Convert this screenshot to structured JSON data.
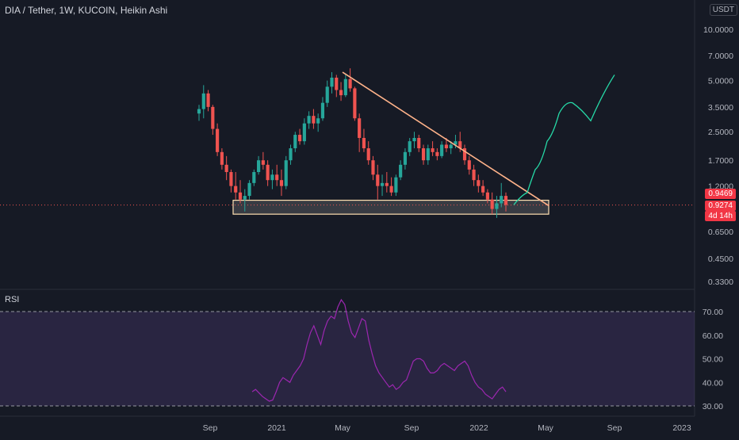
{
  "header": {
    "pair_title": "DIA / Tether, 1W, KUCOIN, Heikin Ashi",
    "currency": "USDT"
  },
  "price_tags": {
    "ref_price": "0.9469",
    "current_price": "0.9274",
    "countdown": "4d 14h",
    "ref_color": "#f23645",
    "current_color": "#f23645"
  },
  "colors": {
    "background": "#161a25",
    "up": "#26a69a",
    "down": "#ef5350",
    "trendline": "#ffb38a",
    "projection": "#26d9a7",
    "rsi_line": "#9c27b0",
    "rsi_band": "#7e57c2",
    "axis_text": "#b2b5be"
  },
  "chart_data": [
    {
      "type": "candlestick",
      "title": "DIA / Tether, 1W, KUCOIN, Heikin Ashi",
      "y_scale": "log",
      "y_ticks": [
        "10.0000",
        "7.0000",
        "5.0000",
        "3.5000",
        "2.5000",
        "1.7000",
        "1.2000",
        "0.6500",
        "0.4500",
        "0.3300"
      ],
      "x_ticks": [
        "Sep",
        "2021",
        "May",
        "Sep",
        "2022",
        "May",
        "Sep",
        "2023"
      ],
      "ohlc": [
        [
          3.2,
          3.6,
          2.9,
          3.4
        ],
        [
          3.4,
          4.7,
          3.0,
          4.2
        ],
        [
          4.2,
          4.4,
          3.3,
          3.5
        ],
        [
          3.5,
          3.6,
          2.4,
          2.6
        ],
        [
          2.6,
          2.8,
          1.8,
          1.9
        ],
        [
          1.9,
          2.0,
          1.5,
          1.6
        ],
        [
          1.6,
          1.8,
          1.3,
          1.45
        ],
        [
          1.45,
          1.5,
          1.1,
          1.2
        ],
        [
          1.2,
          1.45,
          1.0,
          1.1
        ],
        [
          1.1,
          1.3,
          0.95,
          1.0
        ],
        [
          1.0,
          1.15,
          0.85,
          1.05
        ],
        [
          1.05,
          1.3,
          1.0,
          1.25
        ],
        [
          1.25,
          1.5,
          1.2,
          1.45
        ],
        [
          1.45,
          1.8,
          1.4,
          1.7
        ],
        [
          1.7,
          1.9,
          1.5,
          1.6
        ],
        [
          1.6,
          1.7,
          1.2,
          1.3
        ],
        [
          1.3,
          1.5,
          1.15,
          1.4
        ],
        [
          1.4,
          1.6,
          1.2,
          1.3
        ],
        [
          1.3,
          1.5,
          1.05,
          1.2
        ],
        [
          1.2,
          1.8,
          1.15,
          1.7
        ],
        [
          1.7,
          2.1,
          1.6,
          2.0
        ],
        [
          2.0,
          2.5,
          1.9,
          2.4
        ],
        [
          2.4,
          2.6,
          2.1,
          2.2
        ],
        [
          2.2,
          3.0,
          2.1,
          2.8
        ],
        [
          2.8,
          3.3,
          2.6,
          3.1
        ],
        [
          3.1,
          3.4,
          2.6,
          2.8
        ],
        [
          2.8,
          3.2,
          2.5,
          3.0
        ],
        [
          3.0,
          4.0,
          2.9,
          3.7
        ],
        [
          3.7,
          5.0,
          3.5,
          4.6
        ],
        [
          4.6,
          5.6,
          4.2,
          5.2
        ],
        [
          5.2,
          5.4,
          4.0,
          4.4
        ],
        [
          4.4,
          4.9,
          3.8,
          4.1
        ],
        [
          4.1,
          5.5,
          4.0,
          5.1
        ],
        [
          5.1,
          5.9,
          4.3,
          4.5
        ],
        [
          4.5,
          4.6,
          2.9,
          3.0
        ],
        [
          3.0,
          3.2,
          1.9,
          2.3
        ],
        [
          2.3,
          2.6,
          1.9,
          2.0
        ],
        [
          2.0,
          2.2,
          1.6,
          1.7
        ],
        [
          1.7,
          1.8,
          1.3,
          1.4
        ],
        [
          1.4,
          1.6,
          1.0,
          1.2
        ],
        [
          1.2,
          1.4,
          1.05,
          1.25
        ],
        [
          1.25,
          1.45,
          1.1,
          1.2
        ],
        [
          1.2,
          1.35,
          1.05,
          1.1
        ],
        [
          1.1,
          1.4,
          1.05,
          1.35
        ],
        [
          1.35,
          1.7,
          1.3,
          1.6
        ],
        [
          1.6,
          2.0,
          1.5,
          1.9
        ],
        [
          1.9,
          2.3,
          1.8,
          2.2
        ],
        [
          2.2,
          2.5,
          2.0,
          2.3
        ],
        [
          2.3,
          2.4,
          1.9,
          2.0
        ],
        [
          2.0,
          2.1,
          1.6,
          1.7
        ],
        [
          1.7,
          2.1,
          1.6,
          2.0
        ],
        [
          2.0,
          2.2,
          1.8,
          1.9
        ],
        [
          1.9,
          2.0,
          1.7,
          1.8
        ],
        [
          1.8,
          2.2,
          1.75,
          2.1
        ],
        [
          2.1,
          2.3,
          1.9,
          2.0
        ],
        [
          2.0,
          2.2,
          1.85,
          2.1
        ],
        [
          2.1,
          2.4,
          2.0,
          2.2
        ],
        [
          2.2,
          2.5,
          1.9,
          2.0
        ],
        [
          2.0,
          2.1,
          1.6,
          1.7
        ],
        [
          1.7,
          1.8,
          1.4,
          1.5
        ],
        [
          1.5,
          1.6,
          1.2,
          1.3
        ],
        [
          1.3,
          1.4,
          1.1,
          1.2
        ],
        [
          1.2,
          1.3,
          1.05,
          1.1
        ],
        [
          1.1,
          1.15,
          0.95,
          1.0
        ],
        [
          1.0,
          1.1,
          0.82,
          0.88
        ],
        [
          0.88,
          1.05,
          0.78,
          0.95
        ],
        [
          0.95,
          1.25,
          0.9,
          1.05
        ],
        [
          1.05,
          1.1,
          0.85,
          0.93
        ]
      ],
      "trendline": {
        "from": [
          1.9,
          1.32
        ],
        "to": [
          2.0,
          0.92
        ]
      },
      "support_zone": {
        "price_low": 0.82,
        "price_high": 0.99
      },
      "projection": [
        [
          0.93,
          0.97
        ],
        [
          1.05,
          1.1
        ],
        [
          1.3,
          1.5
        ],
        [
          1.6,
          2.2
        ],
        [
          2.4,
          3.2
        ],
        [
          3.8,
          3.7
        ],
        [
          3.4,
          2.9
        ],
        [
          4.2,
          5.4
        ]
      ],
      "current_price": 0.9274,
      "ref_price": 0.9469
    },
    {
      "type": "line",
      "title": "RSI",
      "y_ticks": [
        "70.00",
        "60.00",
        "50.00",
        "40.00",
        "30.00"
      ],
      "band": [
        30,
        70
      ],
      "ylim": [
        27,
        75
      ],
      "values": [
        36,
        37,
        35.5,
        34,
        33,
        32,
        32.5,
        36,
        40,
        42,
        41,
        40,
        43,
        45,
        47,
        50,
        56,
        61,
        64,
        60,
        56,
        62,
        66,
        68,
        67,
        72,
        75,
        73,
        66,
        61,
        59,
        63,
        67,
        66,
        58,
        52,
        47,
        44,
        42,
        40,
        38,
        39,
        37,
        38,
        40,
        41,
        45,
        49,
        50,
        50,
        49,
        46,
        44,
        44,
        45,
        47,
        48,
        47,
        46,
        45,
        47,
        48,
        49,
        47,
        43,
        40,
        38,
        37,
        35,
        34,
        33,
        35,
        37,
        38,
        36
      ]
    }
  ]
}
